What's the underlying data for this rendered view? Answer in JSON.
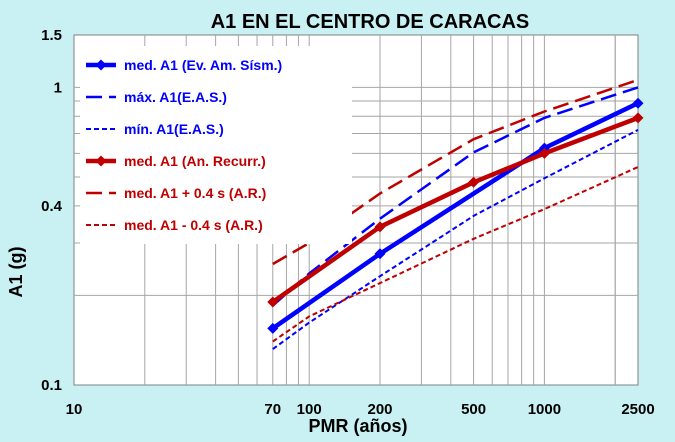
{
  "chart_data": {
    "type": "line",
    "title": "A1 EN EL CENTRO DE CARACAS",
    "xlabel": "PMR (años)",
    "ylabel": "A1 (g)",
    "xscale": "log",
    "yscale": "log",
    "xlim": [
      10,
      2500
    ],
    "ylim": [
      0.1,
      1.5
    ],
    "grid": true,
    "legend_position": "top-left",
    "x_tick_labels": [
      "10",
      "70",
      "100",
      "200",
      "500",
      "1000",
      "2500"
    ],
    "y_tick_labels": [
      "0.1",
      "0.4",
      "1",
      "1.5"
    ],
    "series": [
      {
        "name": "med. A1 (Ev. Am. Sísm.)",
        "color": "#0000ff",
        "style": "solid-thick",
        "marker": "diamond",
        "x": [
          70,
          200,
          1000,
          2500
        ],
        "y": [
          0.155,
          0.276,
          0.625,
          0.885
        ]
      },
      {
        "name": "máx. A1(E.A.S.)",
        "color": "#0000ff",
        "style": "long-dash",
        "x": [
          70,
          100,
          200,
          500,
          1000,
          2500
        ],
        "y": [
          0.185,
          0.237,
          0.362,
          0.605,
          0.79,
          1.0
        ]
      },
      {
        "name": "mín. A1(E.A.S.)",
        "color": "#0000ff",
        "style": "short-dash",
        "x": [
          70,
          100,
          200,
          500,
          1000,
          2500
        ],
        "y": [
          0.132,
          0.162,
          0.232,
          0.37,
          0.495,
          0.72
        ]
      },
      {
        "name": "med. A1 (An. Recurr.)",
        "color": "#c00000",
        "style": "solid-thick",
        "marker": "diamond",
        "x": [
          70,
          200,
          500,
          1000,
          2500
        ],
        "y": [
          0.19,
          0.34,
          0.48,
          0.6,
          0.79
        ]
      },
      {
        "name": "med. A1 + 0.4 s (A.R.)",
        "color": "#c00000",
        "style": "long-dash",
        "x": [
          70,
          100,
          200,
          500,
          1000,
          2500
        ],
        "y": [
          0.255,
          0.3,
          0.44,
          0.67,
          0.83,
          1.06
        ]
      },
      {
        "name": "med. A1 - 0.4 s (A.R.)",
        "color": "#c00000",
        "style": "short-dash",
        "x": [
          70,
          100,
          200,
          500,
          1000,
          2500
        ],
        "y": [
          0.14,
          0.17,
          0.22,
          0.31,
          0.39,
          0.54
        ]
      }
    ]
  }
}
